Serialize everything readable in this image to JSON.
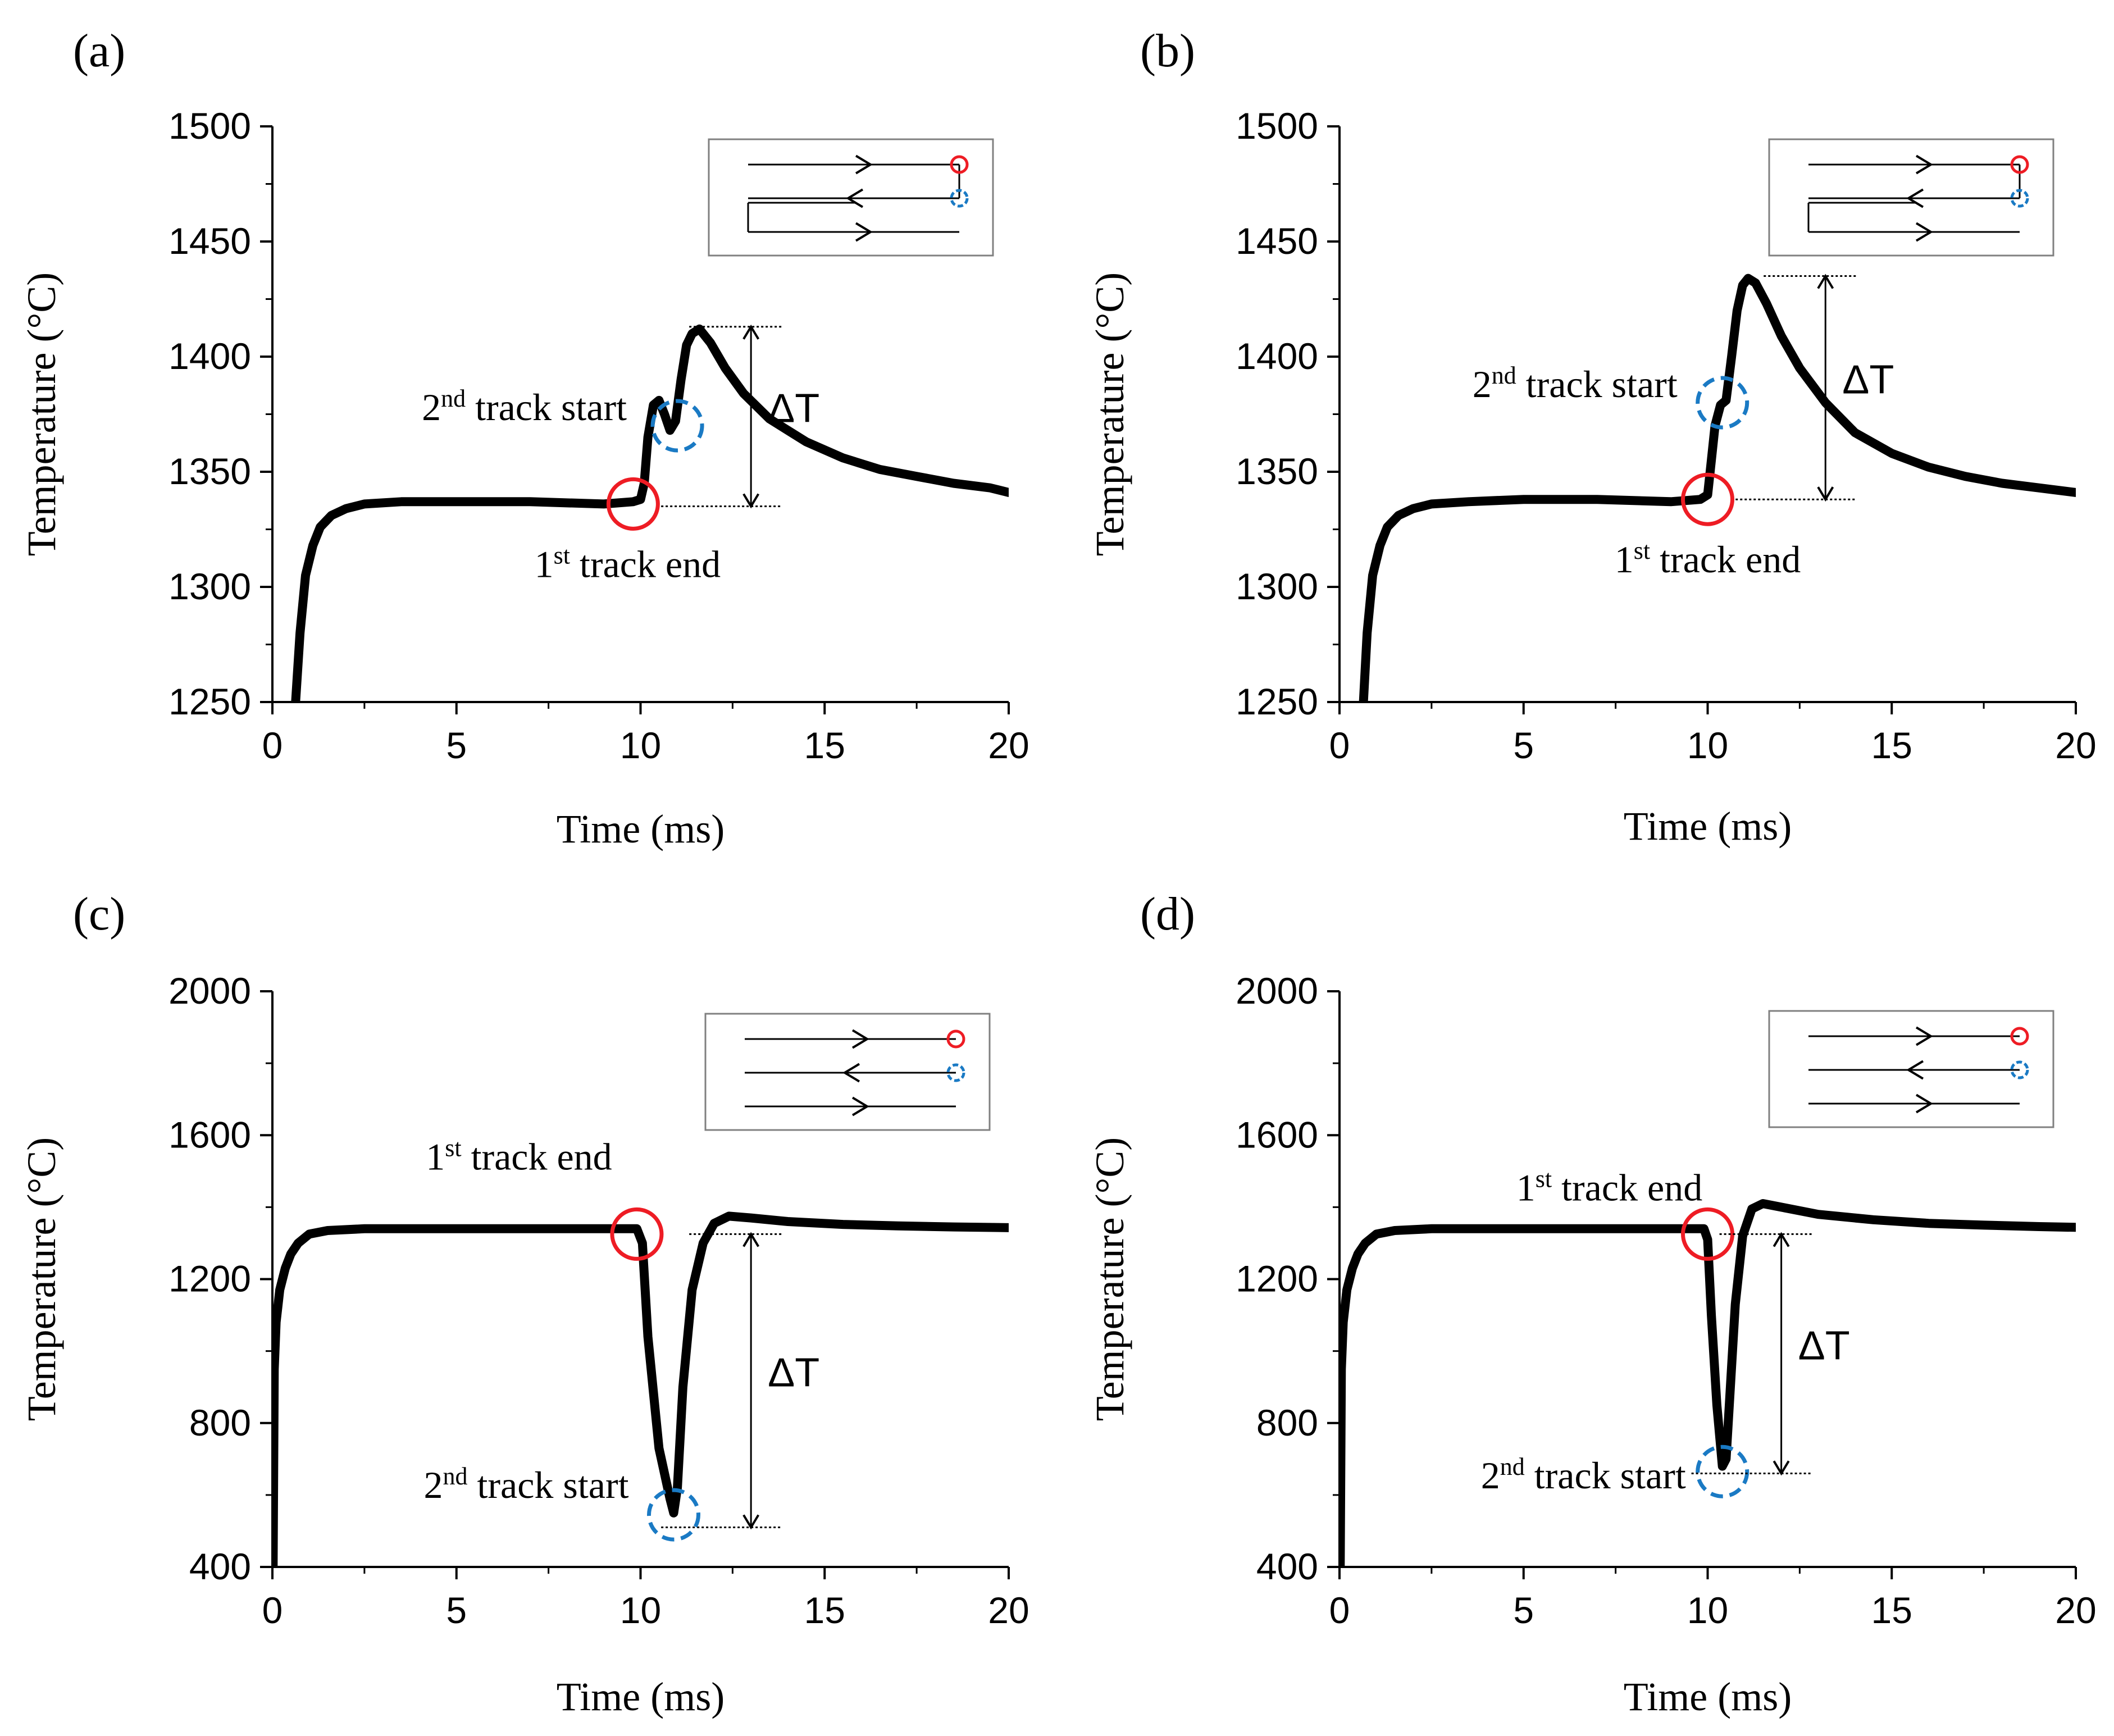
{
  "chart_data": [
    {
      "type": "line",
      "panel_label": "(a)",
      "xlabel": "Time (ms)",
      "ylabel": "Temperature (°C)",
      "xlim": [
        0,
        20
      ],
      "ylim": [
        1250,
        1500
      ],
      "xticks": [
        0,
        5,
        10,
        15,
        20
      ],
      "yticks": [
        1250,
        1300,
        1350,
        1400,
        1450,
        1500
      ],
      "x": [
        0.63,
        0.75,
        0.9,
        1.1,
        1.3,
        1.6,
        2.0,
        2.5,
        3.5,
        5,
        7,
        9,
        9.8,
        10.0,
        10.1,
        10.2,
        10.35,
        10.5,
        10.65,
        10.8,
        10.95,
        11.1,
        11.25,
        11.4,
        11.6,
        11.9,
        12.3,
        12.8,
        13.5,
        14.5,
        15.5,
        16.5,
        17.5,
        18.5,
        19.5,
        20
      ],
      "values": [
        1250,
        1280,
        1305,
        1318,
        1326,
        1331,
        1334,
        1336,
        1337,
        1337,
        1337,
        1336,
        1337,
        1338,
        1345,
        1365,
        1379,
        1381,
        1375,
        1368,
        1372,
        1390,
        1405,
        1410,
        1412,
        1406,
        1395,
        1384,
        1373,
        1363,
        1356,
        1351,
        1348,
        1345,
        1343,
        1341
      ],
      "annotations": {
        "first": {
          "text": "1",
          "sup": "st",
          "rest": " track end",
          "x": 9.8,
          "y": 1336
        },
        "second": {
          "text": "2",
          "sup": "nd",
          "rest": " track start",
          "x": 11.0,
          "y": 1370
        },
        "delta": {
          "text": "ΔT",
          "x": 13.0,
          "y_low": 1335,
          "y_high": 1413
        }
      }
    },
    {
      "type": "line",
      "panel_label": "(b)",
      "xlabel": "Time (ms)",
      "ylabel": "Temperature (°C)",
      "xlim": [
        0,
        20
      ],
      "ylim": [
        1250,
        1500
      ],
      "xticks": [
        0,
        5,
        10,
        15,
        20
      ],
      "yticks": [
        1250,
        1300,
        1350,
        1400,
        1450,
        1500
      ],
      "x": [
        0.65,
        0.75,
        0.9,
        1.1,
        1.3,
        1.6,
        2.0,
        2.5,
        3.5,
        5,
        7,
        9,
        9.8,
        10.0,
        10.1,
        10.2,
        10.35,
        10.5,
        10.65,
        10.8,
        10.95,
        11.1,
        11.3,
        11.6,
        12.0,
        12.5,
        13.2,
        14.0,
        15.0,
        16.0,
        17.0,
        18.0,
        19.0,
        20
      ],
      "values": [
        1250,
        1280,
        1305,
        1318,
        1326,
        1331,
        1334,
        1336,
        1337,
        1338,
        1338,
        1337,
        1338,
        1340,
        1355,
        1370,
        1379,
        1381,
        1400,
        1420,
        1431,
        1434,
        1432,
        1423,
        1409,
        1395,
        1380,
        1367,
        1358,
        1352,
        1348,
        1345,
        1343,
        1341
      ],
      "annotations": {
        "first": {
          "text": "1",
          "sup": "st",
          "rest": " track end",
          "x": 10.0,
          "y": 1338
        },
        "second": {
          "text": "2",
          "sup": "nd",
          "rest": " track start",
          "x": 10.4,
          "y": 1380
        },
        "delta": {
          "text": "ΔT",
          "x": 13.2,
          "y_low": 1338,
          "y_high": 1435
        }
      }
    },
    {
      "type": "line",
      "panel_label": "(c)",
      "xlabel": "Time (ms)",
      "ylabel": "Temperature (°C)",
      "xlim": [
        0,
        20
      ],
      "ylim": [
        400,
        2000
      ],
      "xticks": [
        0,
        5,
        10,
        15,
        20
      ],
      "yticks": [
        400,
        800,
        1200,
        1600,
        2000
      ],
      "x": [
        0.02,
        0.05,
        0.1,
        0.2,
        0.35,
        0.5,
        0.7,
        1.0,
        1.5,
        2.5,
        5,
        8,
        9.9,
        10.05,
        10.2,
        10.5,
        10.8,
        10.9,
        11.0,
        11.15,
        11.4,
        11.7,
        12.0,
        12.4,
        13.0,
        14.0,
        15.5,
        17.0,
        18.5,
        20
      ],
      "values": [
        400,
        950,
        1080,
        1170,
        1230,
        1270,
        1300,
        1325,
        1335,
        1340,
        1340,
        1340,
        1340,
        1300,
        1040,
        730,
        590,
        550,
        620,
        900,
        1170,
        1300,
        1355,
        1375,
        1370,
        1360,
        1352,
        1348,
        1345,
        1343
      ],
      "annotations": {
        "first": {
          "text": "1",
          "sup": "st",
          "rest": " track end",
          "x": 9.9,
          "y": 1325
        },
        "second": {
          "text": "2",
          "sup": "nd",
          "rest": " track start",
          "x": 10.9,
          "y": 545
        },
        "delta": {
          "text": "ΔT",
          "x": 13.0,
          "y_low": 510,
          "y_high": 1325
        }
      }
    },
    {
      "type": "line",
      "panel_label": "(d)",
      "xlabel": "Time (ms)",
      "ylabel": "Temperature (°C)",
      "xlim": [
        0,
        20
      ],
      "ylim": [
        400,
        2000
      ],
      "xticks": [
        0,
        5,
        10,
        15,
        20
      ],
      "yticks": [
        400,
        800,
        1200,
        1600,
        2000
      ],
      "x": [
        0.02,
        0.05,
        0.1,
        0.2,
        0.35,
        0.5,
        0.7,
        1.0,
        1.5,
        2.5,
        5,
        8,
        9.9,
        10.0,
        10.1,
        10.25,
        10.4,
        10.5,
        10.6,
        10.75,
        10.95,
        11.2,
        11.5,
        12.0,
        13.0,
        14.5,
        16.0,
        17.5,
        19.0,
        20
      ],
      "values": [
        400,
        950,
        1080,
        1170,
        1230,
        1270,
        1300,
        1325,
        1335,
        1340,
        1340,
        1340,
        1340,
        1310,
        1100,
        850,
        680,
        700,
        870,
        1130,
        1320,
        1395,
        1410,
        1400,
        1380,
        1365,
        1355,
        1350,
        1346,
        1344
      ],
      "annotations": {
        "first": {
          "text": "1",
          "sup": "st",
          "rest": " track end",
          "x": 10.0,
          "y": 1325
        },
        "second": {
          "text": "2",
          "sup": "nd",
          "rest": " track start",
          "x": 10.4,
          "y": 665
        },
        "delta": {
          "text": "ΔT",
          "x": 12.0,
          "y_low": 660,
          "y_high": 1325
        }
      }
    }
  ],
  "colors": {
    "line": "#000000",
    "first_marker": "#ee1c24",
    "second_marker": "#1a7ac4",
    "inset_border": "#808080"
  }
}
